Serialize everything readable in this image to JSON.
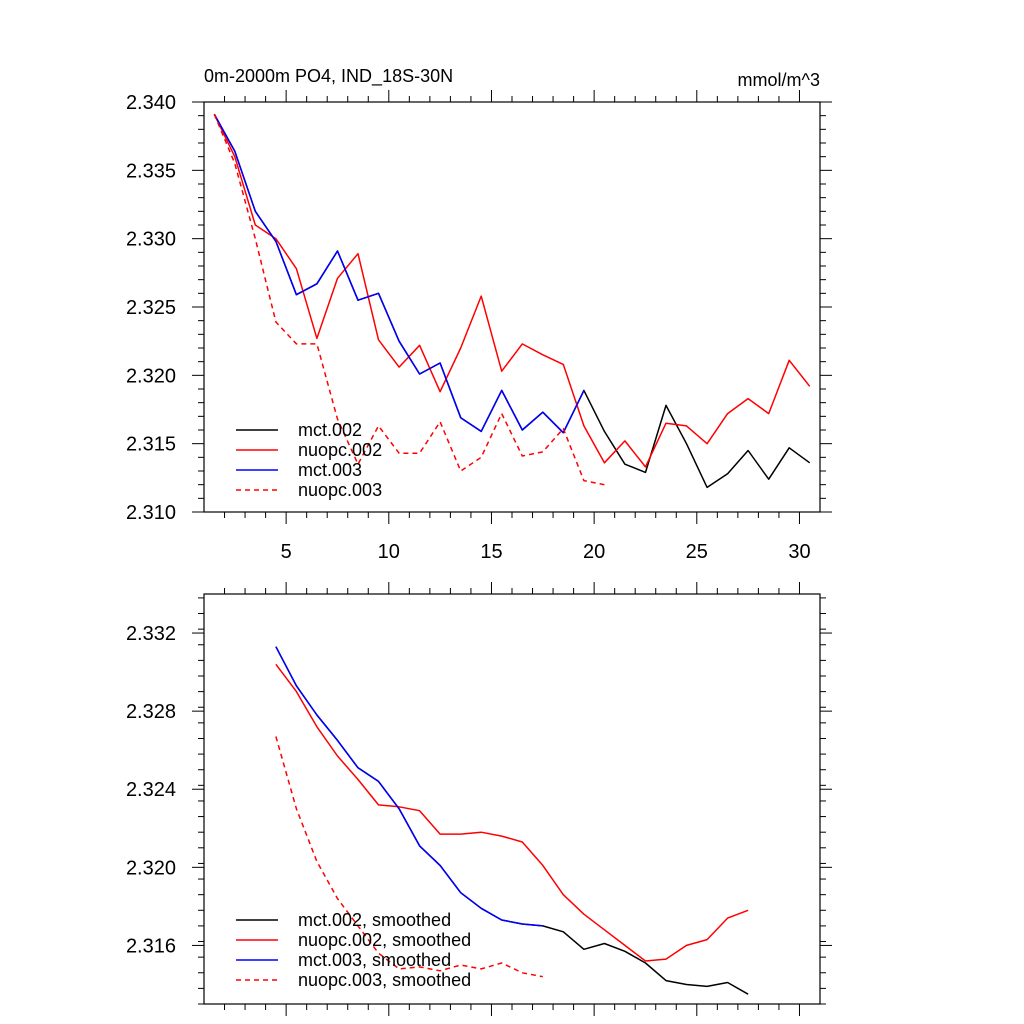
{
  "chart_data": [
    {
      "type": "line",
      "title": "0m-2000m PO4, IND_18S-30N",
      "units": "mmol/m^3",
      "xlim": [
        1,
        31
      ],
      "ylim": [
        2.31,
        2.34
      ],
      "x_ticks": [
        5,
        10,
        15,
        20,
        25,
        30
      ],
      "y_ticks": [
        2.31,
        2.315,
        2.32,
        2.325,
        2.33,
        2.335,
        2.34
      ],
      "y_tick_labels": [
        "2.310",
        "2.315",
        "2.320",
        "2.325",
        "2.330",
        "2.335",
        "2.340"
      ],
      "x_tick_labels": [
        "5",
        "10",
        "15",
        "20",
        "25",
        "30"
      ],
      "legend_position": "bottom-left",
      "series": [
        {
          "name": "mct.002",
          "color": "#000000",
          "dash": "",
          "x": [
            1.5,
            2.5,
            3.5,
            4.5,
            5.5,
            6.5,
            7.5,
            8.5,
            9.5,
            10.5,
            11.5,
            12.5,
            13.5,
            14.5,
            15.5,
            16.5,
            17.5,
            18.5,
            19.5,
            20.5,
            21.5,
            22.5,
            23.5,
            24.5,
            25.5,
            26.5,
            27.5,
            28.5,
            29.5,
            30.5
          ],
          "values": [
            2.3391,
            2.3364,
            2.332,
            2.3298,
            2.3259,
            2.3267,
            2.3291,
            2.3255,
            2.326,
            2.3225,
            2.3201,
            2.3209,
            2.3169,
            2.3159,
            2.3189,
            2.316,
            2.3173,
            2.3158,
            2.3189,
            2.3159,
            2.3135,
            2.3129,
            2.3178,
            2.315,
            2.3118,
            2.3128,
            2.3145,
            2.3124,
            2.3147,
            2.3136
          ]
        },
        {
          "name": "nuopc.002",
          "color": "#ff0000",
          "dash": "",
          "x": [
            1.5,
            2.5,
            3.5,
            4.5,
            5.5,
            6.5,
            7.5,
            8.5,
            9.5,
            10.5,
            11.5,
            12.5,
            13.5,
            14.5,
            15.5,
            16.5,
            17.5,
            18.5,
            19.5,
            20.5,
            21.5,
            22.5,
            23.5,
            24.5,
            25.5,
            26.5,
            27.5,
            28.5,
            29.5,
            30.5
          ],
          "values": [
            2.3391,
            2.336,
            2.331,
            2.33,
            2.3278,
            2.3227,
            2.3271,
            2.3289,
            2.3226,
            2.3206,
            2.3222,
            2.3188,
            2.322,
            2.3258,
            2.3203,
            2.3223,
            2.3215,
            2.3208,
            2.3163,
            2.3136,
            2.3152,
            2.3133,
            2.3165,
            2.3163,
            2.315,
            2.3172,
            2.3183,
            2.3172,
            2.3211,
            2.3192
          ]
        },
        {
          "name": "mct.003",
          "color": "#0000ff",
          "dash": "",
          "x": [
            1.5,
            2.5,
            3.5,
            4.5,
            5.5,
            6.5,
            7.5,
            8.5,
            9.5,
            10.5,
            11.5,
            12.5,
            13.5,
            14.5,
            15.5,
            16.5,
            17.5,
            18.5,
            19.5
          ],
          "values": [
            2.3391,
            2.3364,
            2.332,
            2.3298,
            2.3259,
            2.3267,
            2.3291,
            2.3255,
            2.326,
            2.3225,
            2.3201,
            2.3209,
            2.3169,
            2.3159,
            2.3189,
            2.316,
            2.3173,
            2.3158,
            2.3189
          ]
        },
        {
          "name": "nuopc.003",
          "color": "#ff0000",
          "dash": "5,4",
          "x": [
            1.5,
            2.5,
            3.5,
            4.5,
            5.5,
            6.5,
            7.5,
            8.5,
            9.5,
            10.5,
            11.5,
            12.5,
            13.5,
            14.5,
            15.5,
            16.5,
            17.5,
            18.5,
            19.5,
            20.5
          ],
          "values": [
            2.3391,
            2.3355,
            2.33,
            2.3239,
            2.3223,
            2.3223,
            2.3168,
            2.3135,
            2.3163,
            2.3143,
            2.3143,
            2.3166,
            2.313,
            2.314,
            2.3172,
            2.3141,
            2.3144,
            2.3161,
            2.3123,
            2.312
          ]
        }
      ]
    },
    {
      "type": "line",
      "title": "",
      "xlim": [
        1,
        31
      ],
      "ylim": [
        2.313,
        2.334
      ],
      "x_ticks": [
        5,
        10,
        15,
        20,
        25,
        30
      ],
      "y_ticks": [
        2.316,
        2.32,
        2.324,
        2.328,
        2.332
      ],
      "y_tick_labels": [
        "2.316",
        "2.320",
        "2.324",
        "2.328",
        "2.332"
      ],
      "legend_position": "bottom-left",
      "series": [
        {
          "name": "mct.002, smoothed",
          "color": "#000000",
          "dash": "",
          "x": [
            4.5,
            5.5,
            6.5,
            7.5,
            8.5,
            9.5,
            10.5,
            11.5,
            12.5,
            13.5,
            14.5,
            15.5,
            16.5,
            17.5,
            18.5,
            19.5,
            20.5,
            21.5,
            22.5,
            23.5,
            24.5,
            25.5,
            26.5,
            27.5
          ],
          "values": [
            2.3313,
            2.3293,
            2.3278,
            2.3265,
            2.3251,
            2.3244,
            2.323,
            2.3211,
            2.3201,
            2.3187,
            2.3179,
            2.3173,
            2.3171,
            2.317,
            2.3167,
            2.3158,
            2.3161,
            2.3157,
            2.3151,
            2.3142,
            2.314,
            2.3139,
            2.3141,
            2.3135
          ]
        },
        {
          "name": "nuopc.002, smoothed",
          "color": "#ff0000",
          "dash": "",
          "x": [
            4.5,
            5.5,
            6.5,
            7.5,
            8.5,
            9.5,
            10.5,
            11.5,
            12.5,
            13.5,
            14.5,
            15.5,
            16.5,
            17.5,
            18.5,
            19.5,
            20.5,
            21.5,
            22.5,
            23.5,
            24.5,
            25.5,
            26.5,
            27.5
          ],
          "values": [
            2.3304,
            2.329,
            2.3272,
            2.3257,
            2.3245,
            2.3232,
            2.3231,
            2.3229,
            2.3217,
            2.3217,
            2.3218,
            2.3216,
            2.3213,
            2.3201,
            2.3186,
            2.3176,
            2.3168,
            2.316,
            2.3152,
            2.3153,
            2.316,
            2.3163,
            2.3174,
            2.3178
          ]
        },
        {
          "name": "mct.003, smoothed",
          "color": "#0000ff",
          "dash": "",
          "x": [
            4.5,
            5.5,
            6.5,
            7.5,
            8.5,
            9.5,
            10.5,
            11.5,
            12.5,
            13.5,
            14.5,
            15.5,
            16.5,
            17.5
          ],
          "values": [
            2.3313,
            2.3293,
            2.3278,
            2.3265,
            2.3251,
            2.3244,
            2.323,
            2.3211,
            2.3201,
            2.3187,
            2.3179,
            2.3173,
            2.3171,
            2.317
          ]
        },
        {
          "name": "nuopc.003, smoothed",
          "color": "#ff0000",
          "dash": "5,4",
          "x": [
            4.5,
            5.5,
            6.5,
            7.5,
            8.5,
            9.5,
            10.5,
            11.5,
            12.5,
            13.5,
            14.5,
            15.5,
            16.5,
            17.5
          ],
          "values": [
            2.3267,
            2.323,
            2.3203,
            2.3184,
            2.317,
            2.3156,
            2.3148,
            2.3149,
            2.3147,
            2.315,
            2.3148,
            2.3151,
            2.3146,
            2.3144
          ]
        }
      ]
    }
  ]
}
